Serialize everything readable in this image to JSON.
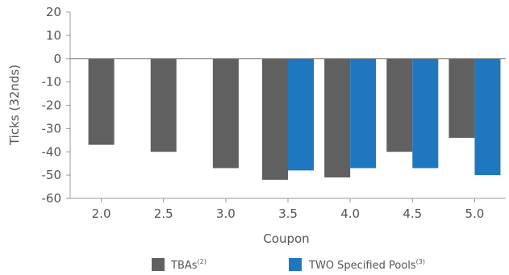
{
  "chart_data": {
    "type": "bar",
    "title": "",
    "xlabel": "Coupon",
    "ylabel": "Ticks (32nds)",
    "categories": [
      "2.0",
      "2.5",
      "3.0",
      "3.5",
      "4.0",
      "4.5",
      "5.0"
    ],
    "ylim": [
      -60,
      20
    ],
    "yticks": [
      20,
      10,
      0,
      -10,
      -20,
      -30,
      -40,
      -50,
      -60
    ],
    "grid": false,
    "legend_position": "bottom",
    "series": [
      {
        "name": "TBAs",
        "name_sup": "(2)",
        "color": "#606060",
        "values": [
          -37,
          -40,
          -47,
          -52,
          -51,
          -40,
          -34
        ]
      },
      {
        "name": "TWO Specified Pools",
        "name_sup": "(3)",
        "color": "#1f77bf",
        "values": [
          null,
          null,
          null,
          -48,
          -47,
          -47,
          -50
        ]
      }
    ]
  }
}
